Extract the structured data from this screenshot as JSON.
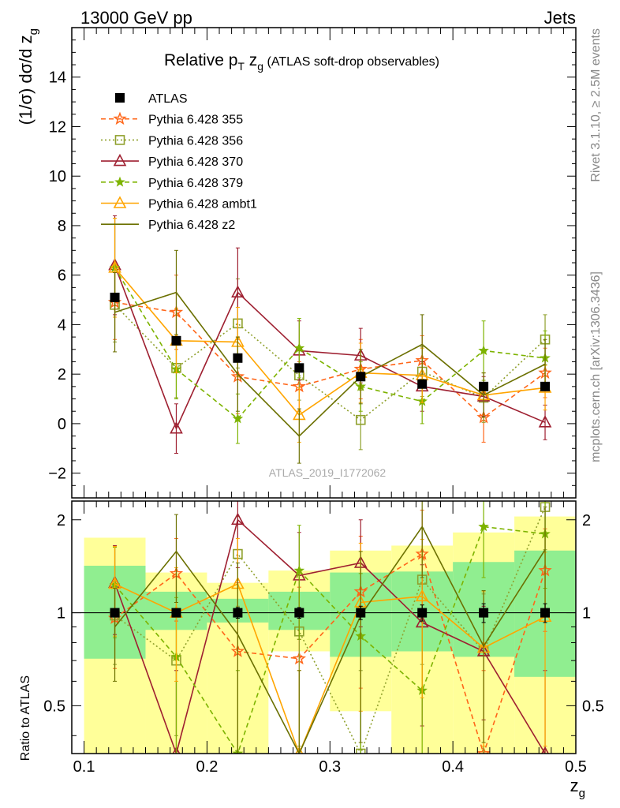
{
  "header": {
    "left": "13000 GeV pp",
    "right": "Jets"
  },
  "side_text": {
    "top": "Rivet 3.1.10, ≥ 2.5M events",
    "bottom": "mcplots.cern.ch [arXiv:1306.3436]"
  },
  "watermark": "ATLAS_2019_I1772062",
  "main_title": {
    "prefix": "Relative p",
    "sub_t": "T",
    "mid": " z",
    "sub_g": "g",
    "suffix": " (ATLAS soft-drop observables)"
  },
  "ylabel_main": {
    "text": "(1/σ) dσ/d z",
    "sub": "g"
  },
  "ylabel_ratio": "Ratio to ATLAS",
  "xlabel": {
    "text": "z",
    "sub": "g"
  },
  "chart_data": {
    "type": "line",
    "x_edges": [
      0.1,
      0.15,
      0.2,
      0.25,
      0.3,
      0.35,
      0.4,
      0.45,
      0.5
    ],
    "x": [
      0.125,
      0.175,
      0.225,
      0.275,
      0.325,
      0.375,
      0.425,
      0.475
    ],
    "xlim": [
      0.09,
      0.5
    ],
    "xticks": [
      "0.1",
      "0.2",
      "0.3",
      "0.4",
      "0.5"
    ],
    "main": {
      "ylim": [
        -3,
        16
      ],
      "yticks": [
        "−2",
        "0",
        "2",
        "4",
        "6",
        "8",
        "10",
        "12",
        "14"
      ]
    },
    "ratio": {
      "ylim": [
        0.35,
        2.3
      ],
      "log_scale": true,
      "yticks": [
        "0.5",
        "1",
        "2"
      ],
      "inner_band": [
        [
          0.71,
          1.42
        ],
        [
          0.88,
          1.17
        ],
        [
          0.93,
          1.11
        ],
        [
          0.88,
          1.17
        ],
        [
          0.72,
          1.35
        ],
        [
          0.75,
          1.36
        ],
        [
          0.72,
          1.46
        ],
        [
          0.62,
          1.59
        ]
      ],
      "outer_band": [
        [
          0.35,
          1.75
        ],
        [
          0.35,
          1.35
        ],
        [
          0.35,
          1.25
        ],
        [
          0.75,
          1.37
        ],
        [
          0.48,
          1.59
        ],
        [
          0.35,
          1.65
        ],
        [
          0.35,
          1.82
        ],
        [
          0.35,
          2.05
        ]
      ]
    },
    "legend_placement": "top-left",
    "series": [
      {
        "name": "ATLAS",
        "color": "#000000",
        "marker": "square-filled",
        "style": "none",
        "values": [
          5.1,
          3.35,
          2.65,
          2.25,
          1.9,
          1.6,
          1.5,
          1.5
        ],
        "errors": [
          0.1,
          0.1,
          0.1,
          0.1,
          0.1,
          0.1,
          0.1,
          0.1
        ],
        "ratio": [
          1.0,
          1.0,
          1.0,
          1.0,
          1.0,
          1.0,
          1.0,
          1.0
        ],
        "ratio_err": [
          0.02,
          0.03,
          0.04,
          0.04,
          0.05,
          0.06,
          0.07,
          0.07
        ]
      },
      {
        "name": "Pythia 6.428 355",
        "color": "#ff6619",
        "marker": "star-open",
        "style": "dashed",
        "values": [
          4.9,
          4.5,
          1.9,
          1.5,
          2.2,
          2.55,
          0.25,
          2.05
        ],
        "errors": [
          1.5,
          1.5,
          1.5,
          1.0,
          1.2,
          1.0,
          1.0,
          1.0
        ],
        "ratio": [
          0.96,
          1.34,
          0.75,
          0.71,
          1.17,
          1.55,
          0.35,
          1.37
        ],
        "ratio_err": [
          0.3,
          0.4,
          0.5,
          0.5,
          0.6,
          0.6,
          0.3,
          0.5
        ]
      },
      {
        "name": "Pythia 6.428 356",
        "color": "#8fa02c",
        "marker": "square-open",
        "style": "dotted",
        "values": [
          4.8,
          2.25,
          4.05,
          1.95,
          0.15,
          2.1,
          1.05,
          3.4
        ],
        "errors": [
          1.5,
          1.2,
          1.8,
          1.0,
          1.2,
          1.0,
          1.0,
          1.0
        ],
        "ratio": [
          0.98,
          0.7,
          1.55,
          0.87,
          0.35,
          1.28,
          0.75,
          2.2
        ],
        "ratio_err": [
          0.3,
          0.3,
          0.5,
          0.5,
          0.3,
          0.6,
          0.4,
          0.6
        ]
      },
      {
        "name": "Pythia 6.428 370",
        "color": "#9e1f30",
        "marker": "triangle-open",
        "style": "solid",
        "values": [
          6.4,
          -0.2,
          5.3,
          2.95,
          2.75,
          1.5,
          1.1,
          0.05
        ],
        "errors": [
          2.0,
          1.0,
          1.8,
          1.2,
          1.1,
          1.0,
          0.8,
          0.7
        ],
        "ratio": [
          1.25,
          0.35,
          2.0,
          1.32,
          1.45,
          0.93,
          0.75,
          0.35
        ],
        "ratio_err": [
          0.4,
          0.3,
          0.6,
          0.5,
          0.55,
          0.5,
          0.3,
          0.3
        ]
      },
      {
        "name": "Pythia 6.428 379",
        "color": "#7db300",
        "marker": "star-filled",
        "style": "dashed",
        "values": [
          6.3,
          2.2,
          0.2,
          3.05,
          1.5,
          0.9,
          2.95,
          2.65
        ],
        "errors": [
          2.0,
          1.2,
          1.0,
          1.2,
          1.0,
          0.9,
          1.2,
          1.1
        ],
        "ratio": [
          1.23,
          0.72,
          0.35,
          1.37,
          0.84,
          0.56,
          1.9,
          1.8
        ],
        "ratio_err": [
          0.4,
          0.4,
          0.3,
          0.55,
          0.5,
          0.5,
          0.6,
          0.6
        ]
      },
      {
        "name": "Pythia 6.428 ambt1",
        "color": "#ffa500",
        "marker": "triangle-open",
        "style": "solid",
        "values": [
          6.3,
          3.35,
          3.3,
          0.35,
          2.05,
          1.95,
          1.15,
          1.45
        ],
        "errors": [
          2.0,
          1.3,
          1.4,
          1.1,
          1.2,
          1.1,
          0.9,
          0.9
        ],
        "ratio": [
          1.24,
          1.0,
          1.24,
          0.35,
          1.08,
          1.13,
          0.77,
          0.97
        ],
        "ratio_err": [
          0.4,
          0.4,
          0.5,
          0.3,
          0.6,
          0.6,
          0.4,
          0.6
        ]
      },
      {
        "name": "Pythia 6.428 z2",
        "color": "#6b7000",
        "marker": "none",
        "style": "solid",
        "values": [
          4.5,
          5.3,
          2.0,
          -0.5,
          1.9,
          3.2,
          1.15,
          2.4
        ],
        "errors": [
          1.6,
          1.7,
          1.5,
          1.1,
          1.1,
          1.2,
          0.9,
          1.0
        ],
        "ratio": [
          0.9,
          1.58,
          0.85,
          0.35,
          0.98,
          1.9,
          0.78,
          1.6
        ],
        "ratio_err": [
          0.3,
          0.5,
          0.6,
          0.3,
          0.6,
          0.6,
          0.4,
          0.6
        ]
      }
    ]
  }
}
